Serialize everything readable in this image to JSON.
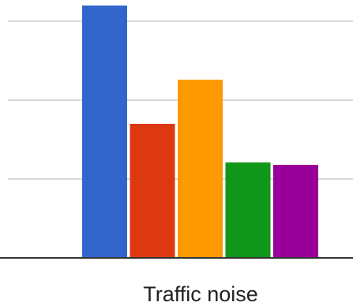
{
  "chart_data": {
    "type": "bar",
    "categories": [
      "Traffic noise"
    ],
    "series": [
      {
        "values": [
          32
        ],
        "color": "#3366cc"
      },
      {
        "values": [
          17
        ],
        "color": "#dc3912"
      },
      {
        "values": [
          22.6
        ],
        "color": "#ff9900"
      },
      {
        "values": [
          12.1
        ],
        "color": "#109618"
      },
      {
        "values": [
          11.8
        ],
        "color": "#990099"
      }
    ],
    "ylim": [
      0,
      35
    ],
    "y_gridlines": [
      10,
      20,
      30
    ],
    "grid": true,
    "legend": "none"
  }
}
